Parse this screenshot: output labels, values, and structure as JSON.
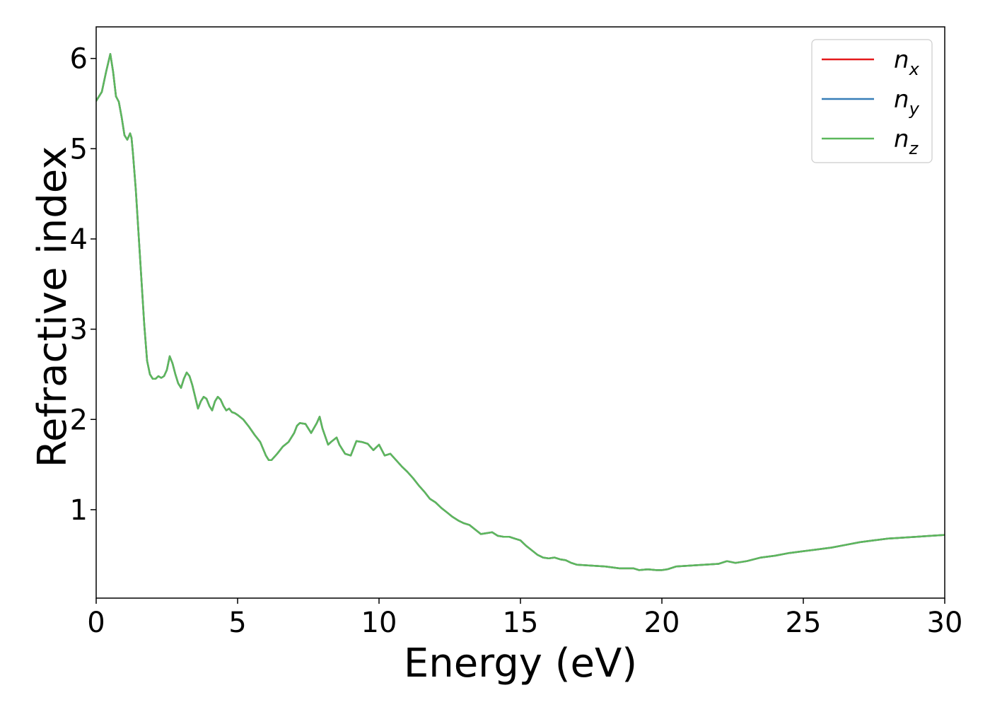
{
  "chart_data": {
    "type": "line",
    "title": "",
    "xlabel": "Energy (eV)",
    "ylabel": "Refractive index",
    "xlim": [
      0,
      30
    ],
    "ylim": [
      0.02,
      6.35
    ],
    "xticks": [
      0,
      5,
      10,
      15,
      20,
      25,
      30
    ],
    "yticks": [
      1,
      2,
      3,
      4,
      5,
      6
    ],
    "grid": false,
    "legend_position": "top-right",
    "series": [
      {
        "name": "n_x",
        "label_base": "n",
        "label_sub": "x",
        "color": "#e41a1c",
        "x": [
          0,
          0.2,
          0.35,
          0.5,
          0.6,
          0.7,
          0.8,
          0.9,
          1.0,
          1.1,
          1.2,
          1.25,
          1.3,
          1.4,
          1.5,
          1.6,
          1.7,
          1.8,
          1.9,
          2.0,
          2.1,
          2.2,
          2.3,
          2.4,
          2.5,
          2.6,
          2.7,
          2.8,
          2.9,
          3.0,
          3.1,
          3.2,
          3.3,
          3.4,
          3.5,
          3.6,
          3.7,
          3.8,
          3.9,
          4.0,
          4.1,
          4.2,
          4.3,
          4.4,
          4.5,
          4.6,
          4.7,
          4.8,
          4.9,
          5.0,
          5.2,
          5.4,
          5.6,
          5.8,
          6.0,
          6.1,
          6.2,
          6.4,
          6.6,
          6.8,
          7.0,
          7.1,
          7.2,
          7.4,
          7.6,
          7.8,
          7.9,
          8.0,
          8.2,
          8.3,
          8.5,
          8.6,
          8.8,
          9.0,
          9.2,
          9.4,
          9.6,
          9.8,
          10.0,
          10.2,
          10.4,
          10.6,
          10.8,
          11.0,
          11.2,
          11.4,
          11.6,
          11.8,
          12.0,
          12.2,
          12.4,
          12.6,
          12.8,
          13.0,
          13.2,
          13.4,
          13.6,
          13.8,
          14.0,
          14.2,
          14.4,
          14.6,
          14.8,
          15.0,
          15.2,
          15.4,
          15.6,
          15.8,
          16.0,
          16.2,
          16.4,
          16.6,
          16.8,
          17.0,
          17.5,
          18.0,
          18.5,
          19.0,
          19.2,
          19.5,
          19.8,
          20.0,
          20.2,
          20.5,
          21.0,
          21.5,
          22.0,
          22.3,
          22.6,
          23.0,
          23.5,
          24.0,
          24.5,
          25.0,
          25.5,
          26.0,
          26.5,
          27.0,
          27.5,
          28.0,
          28.5,
          29.0,
          29.5,
          30.0
        ],
        "y": [
          5.53,
          5.63,
          5.85,
          6.05,
          5.85,
          5.58,
          5.52,
          5.35,
          5.15,
          5.1,
          5.17,
          5.12,
          4.95,
          4.55,
          4.05,
          3.55,
          3.05,
          2.65,
          2.5,
          2.45,
          2.45,
          2.48,
          2.46,
          2.48,
          2.55,
          2.7,
          2.62,
          2.5,
          2.4,
          2.35,
          2.45,
          2.52,
          2.48,
          2.38,
          2.25,
          2.12,
          2.2,
          2.25,
          2.23,
          2.15,
          2.1,
          2.2,
          2.25,
          2.22,
          2.15,
          2.1,
          2.12,
          2.08,
          2.07,
          2.05,
          2.0,
          1.92,
          1.83,
          1.75,
          1.6,
          1.55,
          1.55,
          1.62,
          1.7,
          1.75,
          1.85,
          1.93,
          1.96,
          1.95,
          1.85,
          1.96,
          2.03,
          1.9,
          1.72,
          1.75,
          1.8,
          1.72,
          1.62,
          1.6,
          1.76,
          1.75,
          1.73,
          1.66,
          1.72,
          1.6,
          1.62,
          1.55,
          1.48,
          1.42,
          1.35,
          1.27,
          1.2,
          1.12,
          1.08,
          1.02,
          0.97,
          0.92,
          0.88,
          0.85,
          0.83,
          0.78,
          0.73,
          0.74,
          0.75,
          0.71,
          0.7,
          0.7,
          0.68,
          0.66,
          0.6,
          0.55,
          0.5,
          0.47,
          0.46,
          0.47,
          0.45,
          0.44,
          0.41,
          0.39,
          0.38,
          0.37,
          0.35,
          0.35,
          0.33,
          0.34,
          0.33,
          0.33,
          0.34,
          0.37,
          0.38,
          0.39,
          0.4,
          0.43,
          0.41,
          0.43,
          0.47,
          0.49,
          0.52,
          0.54,
          0.56,
          0.58,
          0.61,
          0.64,
          0.66,
          0.68,
          0.69,
          0.7,
          0.71,
          0.72
        ]
      },
      {
        "name": "n_y",
        "label_base": "n",
        "label_sub": "y",
        "color": "#377eb8",
        "x": [
          0,
          0.2,
          0.35,
          0.5,
          0.6,
          0.7,
          0.8,
          0.9,
          1.0,
          1.1,
          1.2,
          1.25,
          1.3,
          1.4,
          1.5,
          1.6,
          1.7,
          1.8,
          1.9,
          2.0,
          2.1,
          2.2,
          2.3,
          2.4,
          2.5,
          2.6,
          2.7,
          2.8,
          2.9,
          3.0,
          3.1,
          3.2,
          3.3,
          3.4,
          3.5,
          3.6,
          3.7,
          3.8,
          3.9,
          4.0,
          4.1,
          4.2,
          4.3,
          4.4,
          4.5,
          4.6,
          4.7,
          4.8,
          4.9,
          5.0,
          5.2,
          5.4,
          5.6,
          5.8,
          6.0,
          6.1,
          6.2,
          6.4,
          6.6,
          6.8,
          7.0,
          7.1,
          7.2,
          7.4,
          7.6,
          7.8,
          7.9,
          8.0,
          8.2,
          8.3,
          8.5,
          8.6,
          8.8,
          9.0,
          9.2,
          9.4,
          9.6,
          9.8,
          10.0,
          10.2,
          10.4,
          10.6,
          10.8,
          11.0,
          11.2,
          11.4,
          11.6,
          11.8,
          12.0,
          12.2,
          12.4,
          12.6,
          12.8,
          13.0,
          13.2,
          13.4,
          13.6,
          13.8,
          14.0,
          14.2,
          14.4,
          14.6,
          14.8,
          15.0,
          15.2,
          15.4,
          15.6,
          15.8,
          16.0,
          16.2,
          16.4,
          16.6,
          16.8,
          17.0,
          17.5,
          18.0,
          18.5,
          19.0,
          19.2,
          19.5,
          19.8,
          20.0,
          20.2,
          20.5,
          21.0,
          21.5,
          22.0,
          22.3,
          22.6,
          23.0,
          23.5,
          24.0,
          24.5,
          25.0,
          25.5,
          26.0,
          26.5,
          27.0,
          27.5,
          28.0,
          28.5,
          29.0,
          29.5,
          30.0
        ],
        "y": [
          5.53,
          5.63,
          5.85,
          6.05,
          5.85,
          5.58,
          5.52,
          5.35,
          5.15,
          5.1,
          5.17,
          5.12,
          4.95,
          4.55,
          4.05,
          3.55,
          3.05,
          2.65,
          2.5,
          2.45,
          2.45,
          2.48,
          2.46,
          2.48,
          2.55,
          2.7,
          2.62,
          2.5,
          2.4,
          2.35,
          2.45,
          2.52,
          2.48,
          2.38,
          2.25,
          2.12,
          2.2,
          2.25,
          2.23,
          2.15,
          2.1,
          2.2,
          2.25,
          2.22,
          2.15,
          2.1,
          2.12,
          2.08,
          2.07,
          2.05,
          2.0,
          1.92,
          1.83,
          1.75,
          1.6,
          1.55,
          1.55,
          1.62,
          1.7,
          1.75,
          1.85,
          1.93,
          1.96,
          1.95,
          1.85,
          1.96,
          2.03,
          1.9,
          1.72,
          1.75,
          1.8,
          1.72,
          1.62,
          1.6,
          1.76,
          1.75,
          1.73,
          1.66,
          1.72,
          1.6,
          1.62,
          1.55,
          1.48,
          1.42,
          1.35,
          1.27,
          1.2,
          1.12,
          1.08,
          1.02,
          0.97,
          0.92,
          0.88,
          0.85,
          0.83,
          0.78,
          0.73,
          0.74,
          0.75,
          0.71,
          0.7,
          0.7,
          0.68,
          0.66,
          0.6,
          0.55,
          0.5,
          0.47,
          0.46,
          0.47,
          0.45,
          0.44,
          0.41,
          0.39,
          0.38,
          0.37,
          0.35,
          0.35,
          0.33,
          0.34,
          0.33,
          0.33,
          0.34,
          0.37,
          0.38,
          0.39,
          0.4,
          0.43,
          0.41,
          0.43,
          0.47,
          0.49,
          0.52,
          0.54,
          0.56,
          0.58,
          0.61,
          0.64,
          0.66,
          0.68,
          0.69,
          0.7,
          0.71,
          0.72
        ]
      },
      {
        "name": "n_z",
        "label_base": "n",
        "label_sub": "z",
        "color": "#5cb85c",
        "x": [
          0,
          0.2,
          0.35,
          0.5,
          0.6,
          0.7,
          0.8,
          0.9,
          1.0,
          1.1,
          1.2,
          1.25,
          1.3,
          1.4,
          1.5,
          1.6,
          1.7,
          1.8,
          1.9,
          2.0,
          2.1,
          2.2,
          2.3,
          2.4,
          2.5,
          2.6,
          2.7,
          2.8,
          2.9,
          3.0,
          3.1,
          3.2,
          3.3,
          3.4,
          3.5,
          3.6,
          3.7,
          3.8,
          3.9,
          4.0,
          4.1,
          4.2,
          4.3,
          4.4,
          4.5,
          4.6,
          4.7,
          4.8,
          4.9,
          5.0,
          5.2,
          5.4,
          5.6,
          5.8,
          6.0,
          6.1,
          6.2,
          6.4,
          6.6,
          6.8,
          7.0,
          7.1,
          7.2,
          7.4,
          7.6,
          7.8,
          7.9,
          8.0,
          8.2,
          8.3,
          8.5,
          8.6,
          8.8,
          9.0,
          9.2,
          9.4,
          9.6,
          9.8,
          10.0,
          10.2,
          10.4,
          10.6,
          10.8,
          11.0,
          11.2,
          11.4,
          11.6,
          11.8,
          12.0,
          12.2,
          12.4,
          12.6,
          12.8,
          13.0,
          13.2,
          13.4,
          13.6,
          13.8,
          14.0,
          14.2,
          14.4,
          14.6,
          14.8,
          15.0,
          15.2,
          15.4,
          15.6,
          15.8,
          16.0,
          16.2,
          16.4,
          16.6,
          16.8,
          17.0,
          17.5,
          18.0,
          18.5,
          19.0,
          19.2,
          19.5,
          19.8,
          20.0,
          20.2,
          20.5,
          21.0,
          21.5,
          22.0,
          22.3,
          22.6,
          23.0,
          23.5,
          24.0,
          24.5,
          25.0,
          25.5,
          26.0,
          26.5,
          27.0,
          27.5,
          28.0,
          28.5,
          29.0,
          29.5,
          30.0
        ],
        "y": [
          5.53,
          5.63,
          5.85,
          6.05,
          5.85,
          5.58,
          5.52,
          5.35,
          5.15,
          5.1,
          5.17,
          5.12,
          4.95,
          4.55,
          4.05,
          3.55,
          3.05,
          2.65,
          2.5,
          2.45,
          2.45,
          2.48,
          2.46,
          2.48,
          2.55,
          2.7,
          2.62,
          2.5,
          2.4,
          2.35,
          2.45,
          2.52,
          2.48,
          2.38,
          2.25,
          2.12,
          2.2,
          2.25,
          2.23,
          2.15,
          2.1,
          2.2,
          2.25,
          2.22,
          2.15,
          2.1,
          2.12,
          2.08,
          2.07,
          2.05,
          2.0,
          1.92,
          1.83,
          1.75,
          1.6,
          1.55,
          1.55,
          1.62,
          1.7,
          1.75,
          1.85,
          1.93,
          1.96,
          1.95,
          1.85,
          1.96,
          2.03,
          1.9,
          1.72,
          1.75,
          1.8,
          1.72,
          1.62,
          1.6,
          1.76,
          1.75,
          1.73,
          1.66,
          1.72,
          1.6,
          1.62,
          1.55,
          1.48,
          1.42,
          1.35,
          1.27,
          1.2,
          1.12,
          1.08,
          1.02,
          0.97,
          0.92,
          0.88,
          0.85,
          0.83,
          0.78,
          0.73,
          0.74,
          0.75,
          0.71,
          0.7,
          0.7,
          0.68,
          0.66,
          0.6,
          0.55,
          0.5,
          0.47,
          0.46,
          0.47,
          0.45,
          0.44,
          0.41,
          0.39,
          0.38,
          0.37,
          0.35,
          0.35,
          0.33,
          0.34,
          0.33,
          0.33,
          0.34,
          0.37,
          0.38,
          0.39,
          0.4,
          0.43,
          0.41,
          0.43,
          0.47,
          0.49,
          0.52,
          0.54,
          0.56,
          0.58,
          0.61,
          0.64,
          0.66,
          0.68,
          0.69,
          0.7,
          0.71,
          0.72
        ]
      }
    ]
  }
}
